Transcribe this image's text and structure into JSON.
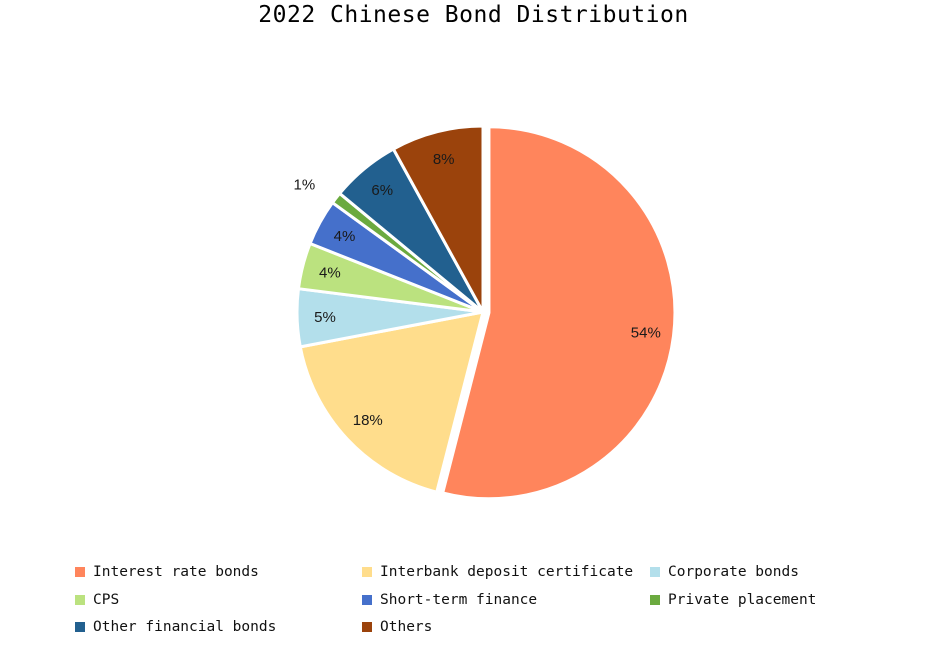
{
  "chart_data": {
    "type": "pie",
    "title": "2022 Chinese Bond Distribution",
    "legend_position": "bottom",
    "slices": [
      {
        "label": "Interest rate bonds",
        "value": 54,
        "value_label": "54%",
        "color": "#FF855C"
      },
      {
        "label": "Interbank deposit certificate",
        "value": 18,
        "value_label": "18%",
        "color": "#FFDD8C"
      },
      {
        "label": "Corporate bonds",
        "value": 5,
        "value_label": "5%",
        "color": "#B3DFEB"
      },
      {
        "label": "CPS",
        "value": 4,
        "value_label": "4%",
        "color": "#BBE27F"
      },
      {
        "label": "Short-term finance",
        "value": 4,
        "value_label": "4%",
        "color": "#4570CB"
      },
      {
        "label": "Private placement",
        "value": 1,
        "value_label": "1%",
        "color": "#6BAA3F"
      },
      {
        "label": "Other financial bonds",
        "value": 6,
        "value_label": "6%",
        "color": "#22608F"
      },
      {
        "label": "Others",
        "value": 8,
        "value_label": "8%",
        "color": "#9B430C"
      }
    ]
  }
}
